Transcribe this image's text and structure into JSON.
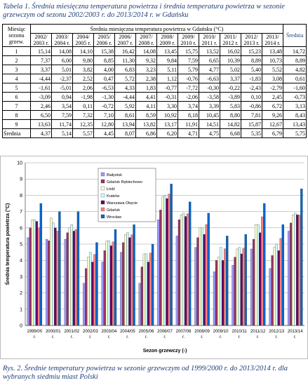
{
  "table_caption": "Tabela 1. Średnia miesięczna temperatura powietrza i średnia temperatura powietrza w sezonie grzewczym od sezonu 2002/2003 r. do 2013/2014 r. w Gdańsku",
  "table": {
    "row_header": "Miesiąc sezonu grzew.",
    "group_header": "Średnia miesięczna temperatura powietrza w Gdańsku (°C)",
    "columns": [
      "2002/ 2003 r.",
      "2003/ 2004 r.",
      "2004/ 2005 r.",
      "2005/ 2006 r.",
      "2006/ 2007 r.",
      "2007/ 2008 r.",
      "2008/ 2009 r.",
      "2009/ 2010 r.",
      "2010/ 2011 r.",
      "2011/ 2012 r.",
      "2012/ 2013 r.",
      "2013/ 2014 r.",
      "Średnia"
    ],
    "rows": [
      [
        "1",
        "15,14",
        "14,08",
        "14,10",
        "15,38",
        "16,42",
        "14,08",
        "13,45",
        "15,75",
        "13,52",
        "16,02",
        "15,23",
        "13,48",
        "14,72"
      ],
      [
        "2",
        "7,37",
        "6,00",
        "9,80",
        "8,85",
        "11,30",
        "9,32",
        "9,84",
        "7,59",
        "6,65",
        "10,39",
        "8,89",
        "10,73",
        "8,89"
      ],
      [
        "3",
        "3,37",
        "5,01",
        "3,82",
        "4,00",
        "6,83",
        "3,23",
        "5,11",
        "5,79",
        "4,77",
        "5,02",
        "5,40",
        "5,52",
        "4,82"
      ],
      [
        "4",
        "-4,44",
        "-2,37",
        "2,52",
        "0,47",
        "5,72",
        "2,38",
        "1,12",
        "-0,76",
        "-6,63",
        "3,37",
        "-1,83",
        "3,08",
        "0,61"
      ],
      [
        "5",
        "-1,61",
        "-5,01",
        "2,06",
        "-6,53",
        "4,33",
        "1,83",
        "-0,77",
        "-7,72",
        "-0,30",
        "-0,22",
        "-2,43",
        "-2,79",
        "-1,60"
      ],
      [
        "6",
        "-3,09",
        "0,94",
        "-1,98",
        "-1,30",
        "-4,44",
        "4,41",
        "-0,31",
        "-2,06",
        "-3,58",
        "-3,89",
        "0,10",
        "2,45",
        "-0,73"
      ],
      [
        "7",
        "2,46",
        "3,54",
        "0,11",
        "-0,72",
        "5,92",
        "4,11",
        "3,30",
        "3,74",
        "3,39",
        "5,83",
        "-0,86",
        "6,72",
        "3,13"
      ],
      [
        "8",
        "6,50",
        "7,59",
        "7,32",
        "7,10",
        "8,61",
        "8,59",
        "10,92",
        "8,18",
        "10,45",
        "8,80",
        "7,81",
        "9,26",
        "8,43"
      ],
      [
        "9",
        "13,63",
        "11,74",
        "12,35",
        "12,80",
        "13,94",
        "13,82",
        "13,17",
        "11,91",
        "14,51",
        "14,82",
        "15,87",
        "12,67",
        "13,43"
      ],
      [
        "Średnia",
        "4,37",
        "5,14",
        "5,57",
        "4,45",
        "8,07",
        "6,86",
        "6,20",
        "4,71",
        "4,75",
        "6,68",
        "5,35",
        "6,79",
        "5,75"
      ]
    ]
  },
  "chart_data": {
    "type": "bar",
    "y_label": "Średnia temperatura powietrza (°C)",
    "x_label": "Sezon grzewczy (-)",
    "categories": [
      "1999/00 r.",
      "2000/01 r.",
      "2001/02 r.",
      "2002/03 r.",
      "2003/04 r.",
      "2004/05 r.",
      "2005/06 r.",
      "2006/07 r.",
      "2007/08 r.",
      "2008/09 r.",
      "2009/10 r.",
      "2010/11 r.",
      "2011/12 r.",
      "2012/13 r.",
      "2013/14 r."
    ],
    "ylim": [
      0,
      10
    ],
    "yticks": [
      0,
      1,
      2,
      3,
      4,
      5,
      6,
      7,
      8,
      9,
      10
    ],
    "grid": true,
    "series": [
      {
        "name": "Białystok",
        "color": "#9999ff",
        "values": [
          5.4,
          5.3,
          5.3,
          2.6,
          3.9,
          4.5,
          2.6,
          6.5,
          5.5,
          4.8,
          3.3,
          3.7,
          4.7,
          3.5,
          5.8
        ]
      },
      {
        "name": "Gdańsk Rębiechowo",
        "color": "#993366",
        "values": [
          6.0,
          5.2,
          5.7,
          3.5,
          4.6,
          5.1,
          3.6,
          7.1,
          6.5,
          5.4,
          4.0,
          4.2,
          5.3,
          4.3,
          6.3
        ]
      },
      {
        "name": "Łódź",
        "color": "#ffffcc",
        "values": [
          6.5,
          6.6,
          6.0,
          4.2,
          5.2,
          5.6,
          4.4,
          7.9,
          6.8,
          6.0,
          4.2,
          4.7,
          6.2,
          4.8,
          6.8
        ]
      },
      {
        "name": "Kraków",
        "color": "#ccffff",
        "values": [
          6.5,
          6.3,
          6.2,
          4.5,
          5.2,
          5.7,
          4.4,
          8.0,
          6.9,
          6.0,
          4.8,
          4.8,
          6.2,
          5.0,
          6.9
        ]
      },
      {
        "name": "Warszawa Okęcie",
        "color": "#660066",
        "values": [
          6.4,
          6.0,
          5.8,
          3.9,
          4.9,
          5.4,
          3.9,
          7.8,
          6.7,
          5.6,
          4.0,
          4.4,
          5.7,
          4.6,
          6.8
        ]
      },
      {
        "name": "Gdańsk",
        "color": "#ff8080",
        "values": [
          6.0,
          5.8,
          5.9,
          4.37,
          5.14,
          5.57,
          4.45,
          8.07,
          6.86,
          6.2,
          4.71,
          4.75,
          6.68,
          5.35,
          6.79
        ]
      },
      {
        "name": "Wrocław",
        "color": "#0066cc",
        "values": [
          7.5,
          7.0,
          7.0,
          5.1,
          5.9,
          6.2,
          5.0,
          8.7,
          7.6,
          6.9,
          5.5,
          5.6,
          7.5,
          6.2,
          8.4
        ]
      }
    ]
  },
  "figure_caption": "Rys. 2. Średnie temperatury powietrza w sezonie grzewczym od 1999/2000 r. do 2013/2014 r. dla wybranych siedmiu miast Polski"
}
